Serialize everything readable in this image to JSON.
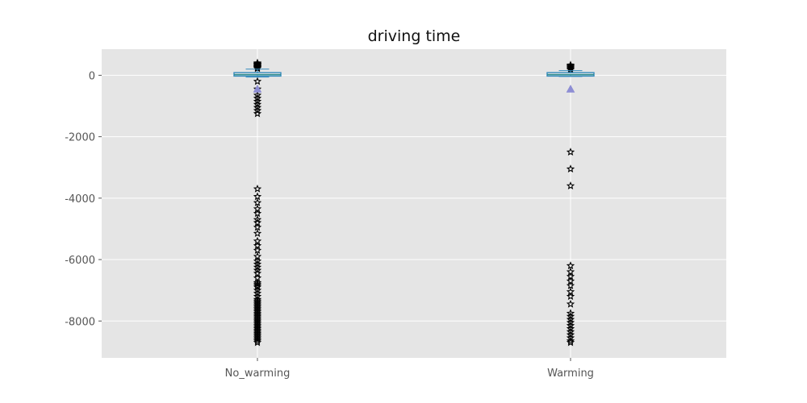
{
  "chart_data": {
    "type": "box",
    "title": "driving time",
    "xlabel": "",
    "ylabel": "",
    "ylim": [
      -9200,
      850
    ],
    "yticks": [
      0,
      -2000,
      -4000,
      -6000,
      -8000
    ],
    "ytick_labels": [
      "0",
      "-2000",
      "-4000",
      "-6000",
      "-8000"
    ],
    "categories": [
      "No_warming",
      "Warming"
    ],
    "grid": true,
    "style": {
      "background": "#e5e5e5",
      "grid_color": "#ffffff",
      "box_color": "#348abd",
      "median_color": "#2a8a8a",
      "mean_color": "#8e8ed4",
      "flier_color": "#000000"
    },
    "boxes": [
      {
        "category": "No_warming",
        "whisker_low": -60,
        "q1": 0,
        "median": 20,
        "q3": 60,
        "whisker_high": 200,
        "mean": -450,
        "outliers": [
          400,
          380,
          360,
          340,
          320,
          300,
          280,
          260,
          240,
          220,
          -200,
          -450,
          -650,
          -750,
          -850,
          -950,
          -1050,
          -1150,
          -1250,
          -3700,
          -3950,
          -4150,
          -4350,
          -4500,
          -4700,
          -4800,
          -4950,
          -5150,
          -5400,
          -5550,
          -5700,
          -5900,
          -6050,
          -6150,
          -6250,
          -6350,
          -6450,
          -6600,
          -6750,
          -6800,
          -6850,
          -6900,
          -7000,
          -7100,
          -7200,
          -7300,
          -7350,
          -7400,
          -7450,
          -7500,
          -7550,
          -7600,
          -7650,
          -7700,
          -7750,
          -7800,
          -7850,
          -7900,
          -7950,
          -8000,
          -8050,
          -8100,
          -8150,
          -8200,
          -8250,
          -8300,
          -8350,
          -8400,
          -8450,
          -8500,
          -8550,
          -8600,
          -8650,
          -8700
        ]
      },
      {
        "category": "Warming",
        "whisker_low": -40,
        "q1": 0,
        "median": 20,
        "q3": 60,
        "whisker_high": 150,
        "mean": -450,
        "outliers": [
          330,
          300,
          270,
          240,
          210,
          180,
          -2500,
          -3050,
          -3600,
          -6200,
          -6400,
          -6550,
          -6700,
          -6850,
          -7050,
          -7200,
          -7450,
          -7750,
          -7850,
          -7950,
          -8050,
          -8150,
          -8250,
          -8350,
          -8450,
          -8550,
          -8650,
          -8700
        ]
      }
    ]
  }
}
